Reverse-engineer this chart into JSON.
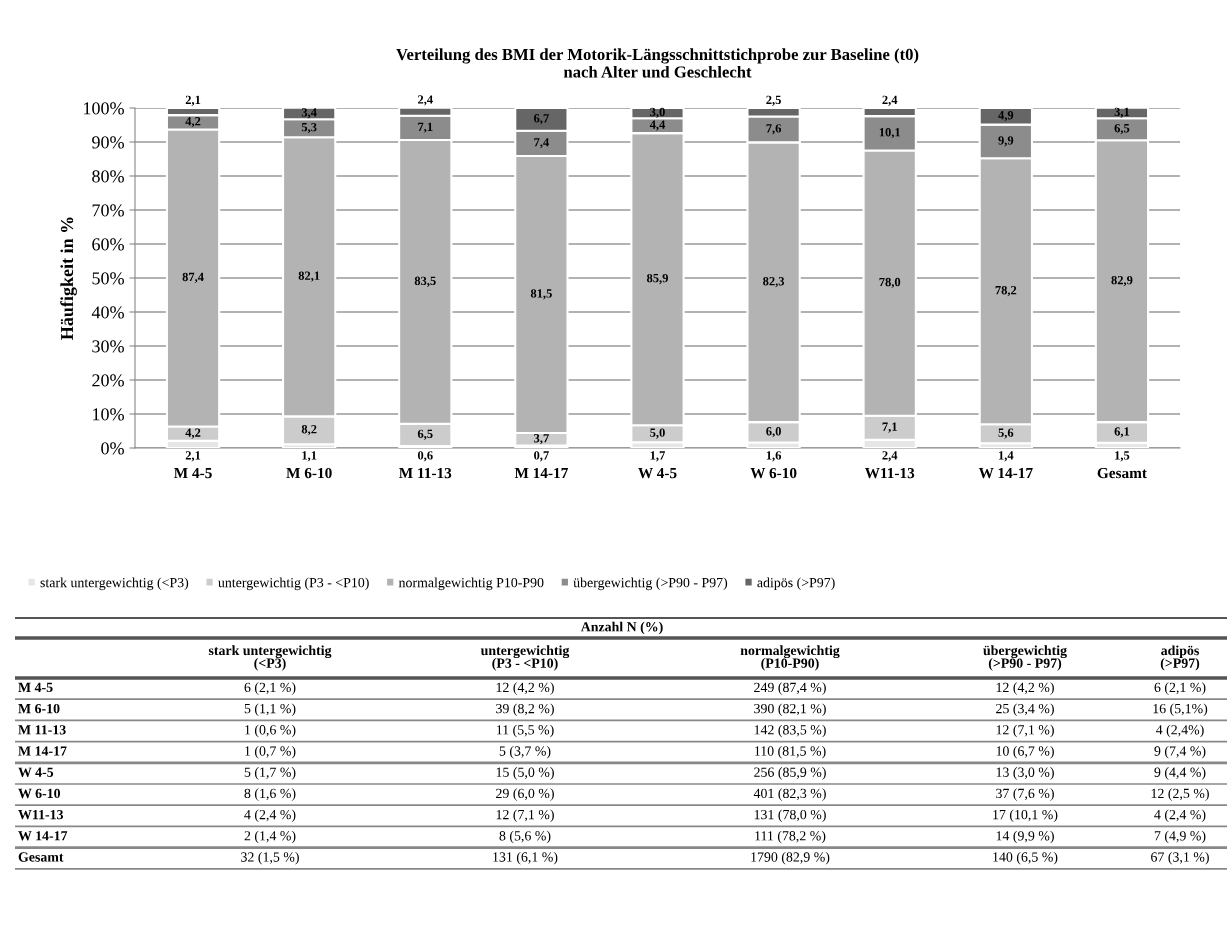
{
  "chart_data": [
    {
      "type": "bar",
      "stacked": true,
      "title": "Verteilung des BMI der Motorik-Längsschnittstichprobe zur Baseline (t0)\nnach Alter und Geschlecht",
      "ylabel": "Häufigkeit in %",
      "categories": [
        "M 4-5",
        "M 6-10",
        "M 11-13",
        "M 14-17",
        "W 4-5",
        "W 6-10",
        "W11-13",
        "W 14-17",
        "Gesamt"
      ],
      "ylim": [
        0,
        100
      ],
      "yticks": [
        {
          "value": 0,
          "label": "0%"
        },
        {
          "value": 10,
          "label": "10%"
        },
        {
          "value": 20,
          "label": "20%"
        },
        {
          "value": 30,
          "label": "30%"
        },
        {
          "value": 40,
          "label": "40%"
        },
        {
          "value": 50,
          "label": "50%"
        },
        {
          "value": 60,
          "label": "60%"
        },
        {
          "value": 70,
          "label": "70%"
        },
        {
          "value": 80,
          "label": "80%"
        },
        {
          "value": 90,
          "label": "90%"
        },
        {
          "value": 100,
          "label": "100%"
        }
      ],
      "grid": "y",
      "legend": "bottom",
      "series": [
        {
          "name": "stark untergewichtig (<P3)",
          "color": "#e6e6e6",
          "values": [
            2.1,
            1.1,
            0.6,
            0.7,
            1.7,
            1.6,
            2.4,
            1.4,
            1.5
          ],
          "value_labels": [
            "2,1",
            "1,1",
            "0,6",
            "0,7",
            "1,7",
            "1,6",
            "2,4",
            "1,4",
            "1,5"
          ]
        },
        {
          "name": "untergewichtig (P3 - <P10)",
          "color": "#cccccc",
          "values": [
            4.2,
            8.2,
            6.5,
            3.7,
            5.0,
            6.0,
            7.1,
            5.6,
            6.1
          ],
          "value_labels": [
            "4,2",
            "8,2",
            "6,5",
            "3,7",
            "5,0",
            "6,0",
            "7,1",
            "5,6",
            "6,1"
          ]
        },
        {
          "name": "normalgewichtig P10-P90",
          "color": "#b3b3b3",
          "values": [
            87.4,
            82.1,
            83.5,
            81.5,
            85.9,
            82.3,
            78.0,
            78.2,
            82.9
          ],
          "value_labels": [
            "87,4",
            "82,1",
            "83,5",
            "81,5",
            "85,9",
            "82,3",
            "78,0",
            "78,2",
            "82,9"
          ]
        },
        {
          "name": "übergewichtig (>P90 - P97)",
          "color": "#8c8c8c",
          "values": [
            4.2,
            5.3,
            7.1,
            7.4,
            4.4,
            7.6,
            10.1,
            9.9,
            6.5
          ],
          "value_labels": [
            "4,2",
            "5,3",
            "7,1",
            "7,4",
            "4,4",
            "7,6",
            "10,1",
            "9,9",
            "6,5"
          ]
        },
        {
          "name": "adipös (>P97)",
          "color": "#666666",
          "values": [
            2.1,
            3.4,
            2.4,
            6.7,
            3.0,
            2.5,
            2.4,
            4.9,
            3.1
          ],
          "value_labels": [
            "2,1",
            "3,4",
            "2,4",
            "6,7",
            "3,0",
            "2,5",
            "2,4",
            "4,9",
            "3,1"
          ]
        }
      ]
    },
    {
      "type": "other",
      "title": "Anzahl N (%)",
      "categories": [
        "stark untergewichtig\n(<P3)",
        "untergewichtig\n(P3 - <P10)",
        "normalgewichtig\n(P10-P90)",
        "übergewichtig\n(>P90 - P97)",
        "adipös\n(>P97)"
      ],
      "y_categories": [
        "M 4-5",
        "M 6-10",
        "M 11-13",
        "M 14-17",
        "W 4-5",
        "W 6-10",
        "W11-13",
        "W 14-17",
        "Gesamt"
      ],
      "cell_labels": [
        [
          "6 (2,1 %)",
          "12 (4,2 %)",
          "249 (87,4 %)",
          "12 (4,2 %)",
          "6 (2,1 %)"
        ],
        [
          "5 (1,1 %)",
          "39 (8,2 %)",
          "390 (82,1 %)",
          "25 (3,4 %)",
          "16 (5,1%)"
        ],
        [
          "1 (0,6 %)",
          "11 (5,5 %)",
          "142 (83,5 %)",
          "12 (7,1 %)",
          "4 (2,4%)"
        ],
        [
          "1 (0,7 %)",
          "5 (3,7 %)",
          "110 (81,5 %)",
          "10 (6,7 %)",
          "9 (7,4 %)"
        ],
        [
          "5 (1,7 %)",
          "15 (5,0 %)",
          "256 (85,9 %)",
          "13 (3,0 %)",
          "9 (4,4 %)"
        ],
        [
          "8 (1,6 %)",
          "29 (6,0 %)",
          "401 (82,3 %)",
          "37 (7,6 %)",
          "12 (2,5 %)"
        ],
        [
          "4 (2,4 %)",
          "12 (7,1 %)",
          "131 (78,0 %)",
          "17 (10,1 %)",
          "4 (2,4 %)"
        ],
        [
          "2 (1,4 %)",
          "8 (5,6 %)",
          "111 (78,2 %)",
          "14 (9,9 %)",
          "7 (4,9 %)"
        ],
        [
          "32 (1,5 %)",
          "131 (6,1 %)",
          "1790 (82,9 %)",
          "140 (6,5 %)",
          "67 (3,1 %)"
        ]
      ]
    }
  ]
}
